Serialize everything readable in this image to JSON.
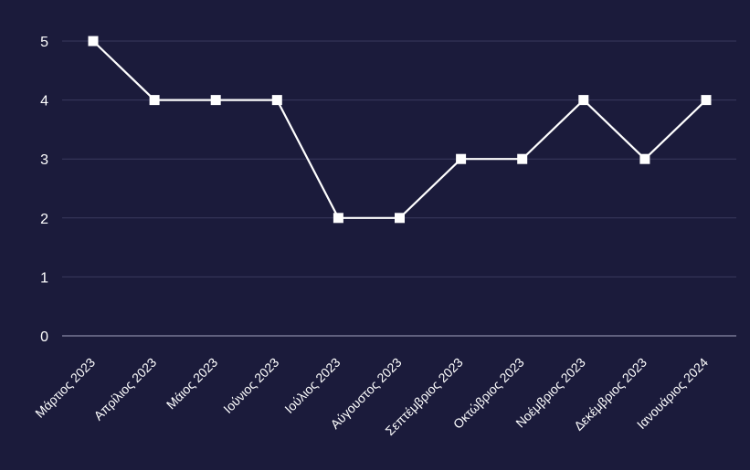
{
  "chart_data": {
    "type": "line",
    "title": "",
    "xlabel": "",
    "ylabel": "",
    "categories": [
      "Μάρτιος 2023",
      "Απρίλιος 2023",
      "Μάιος 2023",
      "Ιούνιος 2023",
      "Ιούλιος 2023",
      "Αύγουστος 2023",
      "Σεπτέμβριος 2023",
      "Οκτώβριος 2023",
      "Νοέμβριος 2023",
      "Δεκέμβριος 2023",
      "Ιανουάριος 2024"
    ],
    "series": [
      {
        "values": [
          5,
          4,
          4,
          4,
          2,
          2,
          3,
          3,
          4,
          3,
          4
        ]
      }
    ],
    "yticks": [
      "0",
      "1",
      "2",
      "3",
      "4",
      "5"
    ],
    "ylim": [
      0,
      5
    ],
    "grid": "horizontal",
    "legend": "none",
    "colors": {
      "background": "#1b1b3b",
      "series": "#ffffff",
      "grid": "#3a3a5e",
      "axis": "#8a8aa6"
    }
  }
}
